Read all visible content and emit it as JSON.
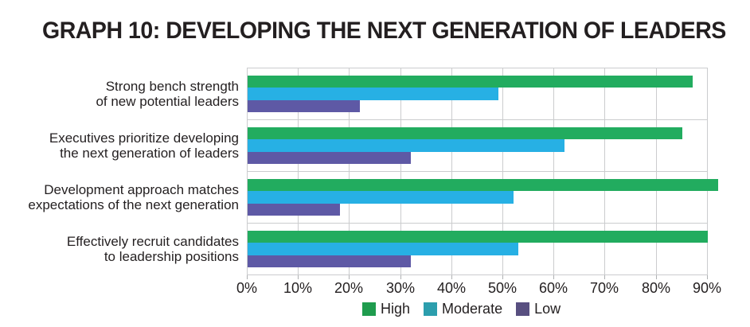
{
  "title": "GRAPH 10: DEVELOPING THE NEXT GENERATION OF LEADERS",
  "colors": {
    "bar_high": "#22AC5F",
    "bar_moderate": "#27B0E4",
    "bar_low": "#5E59A5",
    "legend_high": "#1F9C4E",
    "legend_moderate": "#2C9EAD",
    "legend_low": "#584F80",
    "gridline": "#CBCCCE",
    "text": "#231F20"
  },
  "chart_data": {
    "type": "bar",
    "orientation": "horizontal",
    "title": "GRAPH 10: DEVELOPING THE NEXT GENERATION OF LEADERS",
    "categories": [
      {
        "lines": [
          "Strong bench strength",
          "of new potential leaders"
        ]
      },
      {
        "lines": [
          "Executives prioritize developing",
          "the next generation of leaders"
        ]
      },
      {
        "lines": [
          "Development approach matches",
          "expectations of the next generation"
        ]
      },
      {
        "lines": [
          "Effectively recruit candidates",
          "to leadership positions"
        ]
      }
    ],
    "series": [
      {
        "name": "High",
        "color": "#22AC5F",
        "legend_color": "#1F9C4E",
        "values": [
          87,
          85,
          92,
          90
        ]
      },
      {
        "name": "Moderate",
        "color": "#27B0E4",
        "legend_color": "#2C9EAD",
        "values": [
          49,
          62,
          52,
          53
        ]
      },
      {
        "name": "Low",
        "color": "#5E59A5",
        "legend_color": "#584F80",
        "values": [
          22,
          32,
          18,
          32
        ]
      }
    ],
    "x_ticks": [
      "0%",
      "10%",
      "20%",
      "30%",
      "40%",
      "50%",
      "60%",
      "70%",
      "80%",
      "90%"
    ],
    "xlim": [
      0,
      97
    ],
    "x_tick_step_percent": 10,
    "grid": true,
    "legend_position": "bottom"
  }
}
